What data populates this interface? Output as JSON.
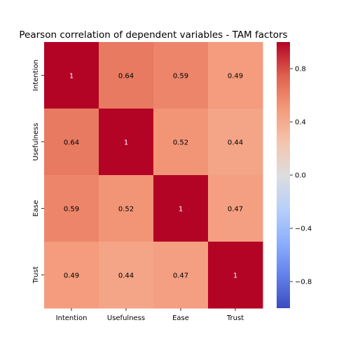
{
  "chart_data": {
    "type": "heatmap",
    "title": "Pearson correlation of dependent variables - TAM factors",
    "x_categories": [
      "Intention",
      "Usefulness",
      "Ease",
      "Trust"
    ],
    "y_categories": [
      "Intention",
      "Usefulness",
      "Ease",
      "Trust"
    ],
    "values": [
      [
        1,
        0.64,
        0.59,
        0.49
      ],
      [
        0.64,
        1,
        0.52,
        0.44
      ],
      [
        0.59,
        0.52,
        1,
        0.47
      ],
      [
        0.49,
        0.44,
        0.47,
        1
      ]
    ],
    "cell_labels": [
      [
        "1",
        "0.64",
        "0.59",
        "0.49"
      ],
      [
        "0.64",
        "1",
        "0.52",
        "0.44"
      ],
      [
        "0.59",
        "0.52",
        "1",
        "0.47"
      ],
      [
        "0.49",
        "0.44",
        "0.47",
        "1"
      ]
    ],
    "colormap": "coolwarm",
    "colors": {
      "low": "#3b4cc0",
      "mid": "#dddddd",
      "high": "#b40426"
    },
    "colorbar": {
      "range": [
        -1,
        1
      ],
      "ticks": [
        0.8,
        0.4,
        0.0,
        -0.4,
        -0.8
      ],
      "tick_labels": [
        "0.8",
        "0.4",
        "0.0",
        "−0.4",
        "−0.8"
      ]
    }
  }
}
